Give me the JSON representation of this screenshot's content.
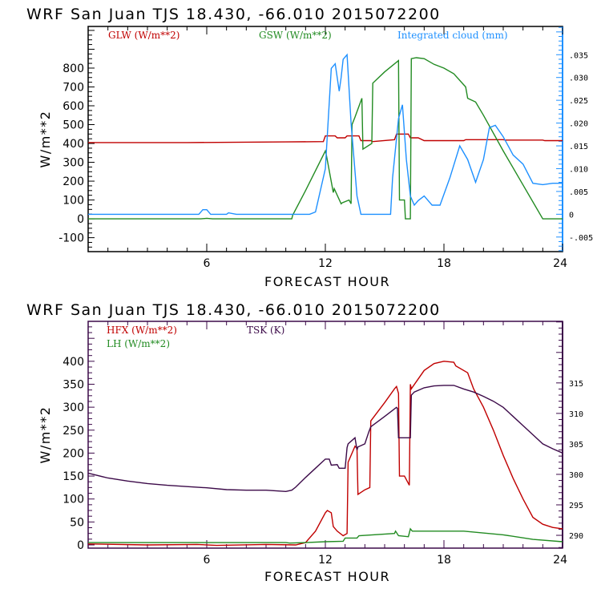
{
  "chart_data": [
    {
      "type": "line",
      "title": "WRF   San Juan TJS  18.430, -66.010  2015072200",
      "xlabel": "FORECAST HOUR",
      "ylabel": "W/m**2",
      "xlim": [
        0,
        24
      ],
      "ylim": [
        -174,
        1021
      ],
      "xticks": [
        6,
        12,
        18,
        24
      ],
      "xtick_labels": [
        "6",
        "12",
        "18",
        "24"
      ],
      "yticks": [
        -100,
        0,
        100,
        200,
        300,
        400,
        500,
        600,
        700,
        800
      ],
      "ytick_labels": [
        "-100",
        "0",
        "100",
        "200",
        "300",
        "400",
        "500",
        "600",
        "700",
        "800"
      ],
      "y2lim": [
        -0.0082,
        0.0412
      ],
      "y2ticks": [
        -0.005,
        0,
        0.005,
        0.01,
        0.015,
        0.02,
        0.025,
        0.03,
        0.035
      ],
      "y2tick_labels": [
        "-.005",
        "0",
        ".005",
        ".010",
        ".015",
        ".020",
        ".025",
        ".030",
        ".035"
      ],
      "grid": false,
      "legend_placement": "top",
      "series": [
        {
          "name": "GLW (W/m**2)",
          "axis": "left",
          "color": "#c00000",
          "x": [
            0,
            5,
            10,
            11.9,
            12.0,
            12.5,
            12.6,
            13.0,
            13.1,
            13.7,
            13.8,
            14.3,
            14.4,
            15.5,
            15.6,
            16.2,
            16.3,
            16.7,
            17.0,
            19.0,
            19.1,
            21.0,
            21.1,
            23.0,
            23.1,
            24
          ],
          "y": [
            405,
            405,
            408,
            410,
            440,
            440,
            430,
            430,
            440,
            440,
            415,
            415,
            410,
            420,
            450,
            450,
            430,
            430,
            415,
            415,
            420,
            420,
            418,
            418,
            415,
            415
          ]
        },
        {
          "name": "GSW (W/m**2)",
          "axis": "left",
          "color": "#228b22",
          "x": [
            0,
            5.7,
            6.0,
            6.3,
            10.3,
            10.35,
            11.0,
            12.0,
            12.05,
            12.4,
            12.45,
            12.8,
            12.85,
            13.2,
            13.3,
            13.35,
            13.5,
            13.85,
            13.9,
            14.35,
            14.4,
            15.0,
            15.7,
            15.75,
            16.0,
            16.05,
            16.3,
            16.35,
            16.6,
            17.0,
            17.5,
            18.0,
            18.5,
            19.1,
            19.2,
            19.6,
            20.0,
            21.0,
            22.0,
            23.0,
            24.0
          ],
          "y": [
            0,
            0,
            3,
            0,
            0,
            20,
            150,
            360,
            340,
            140,
            160,
            80,
            85,
            100,
            80,
            500,
            540,
            640,
            370,
            400,
            720,
            780,
            840,
            100,
            100,
            0,
            0,
            850,
            855,
            850,
            820,
            800,
            770,
            700,
            640,
            620,
            550,
            360,
            180,
            0,
            0
          ]
        },
        {
          "name": "Integrated cloud (mm)",
          "axis": "right",
          "color": "#1e90ff",
          "x": [
            0,
            5.6,
            5.8,
            6.0,
            6.2,
            7.0,
            7.1,
            7.5,
            10.0,
            11.2,
            11.5,
            12.0,
            12.3,
            12.5,
            12.7,
            12.8,
            12.9,
            13.1,
            13.3,
            13.6,
            13.8,
            15.3,
            15.4,
            15.7,
            15.9,
            16.1,
            16.3,
            16.5,
            16.7,
            17.0,
            17.4,
            17.8,
            18.3,
            18.8,
            19.2,
            19.6,
            20.0,
            20.3,
            20.6,
            21.0,
            21.5,
            22.0,
            22.5,
            23.0,
            23.5,
            24.0
          ],
          "y": [
            0,
            0,
            0.001,
            0.001,
            0,
            0,
            0.0003,
            0,
            0,
            0,
            0.0005,
            0.01,
            0.032,
            0.033,
            0.027,
            0.03,
            0.034,
            0.035,
            0.02,
            0.004,
            0,
            0,
            0.008,
            0.021,
            0.024,
            0.012,
            0.004,
            0.002,
            0.003,
            0.004,
            0.002,
            0.002,
            0.008,
            0.015,
            0.012,
            0.007,
            0.012,
            0.019,
            0.0195,
            0.017,
            0.013,
            0.011,
            0.0068,
            0.0065,
            0.0068,
            0.0068
          ]
        }
      ],
      "legend": [
        "GLW (W/m**2)",
        "GSW (W/m**2)",
        "Integrated cloud (mm)"
      ]
    },
    {
      "type": "line",
      "title": "WRF   San Juan TJS  18.430, -66.010  2015072200",
      "xlabel": "FORECAST HOUR",
      "ylabel": "W/m**2",
      "xlim": [
        0,
        24
      ],
      "ylim": [
        -7,
        487
      ],
      "xticks": [
        6,
        12,
        18,
        24
      ],
      "xtick_labels": [
        "6",
        "12",
        "18",
        "24"
      ],
      "yticks": [
        0,
        50,
        100,
        150,
        200,
        250,
        300,
        350,
        400
      ],
      "ytick_labels": [
        "0",
        "50",
        "100",
        "150",
        "200",
        "250",
        "300",
        "350",
        "400"
      ],
      "y2lim": [
        287.9,
        325.1
      ],
      "y2ticks": [
        290,
        295,
        300,
        305,
        310,
        315
      ],
      "y2tick_labels": [
        "290",
        "295",
        "300",
        "305",
        "310",
        "315"
      ],
      "grid": false,
      "legend_placement": "top-left",
      "series": [
        {
          "name": "HFX (W/m**2)",
          "axis": "left",
          "color": "#c00000",
          "x": [
            0,
            3,
            5.5,
            6.5,
            9,
            10.5,
            11.0,
            11.5,
            12.0,
            12.1,
            12.3,
            12.4,
            12.6,
            12.9,
            13.1,
            13.15,
            13.5,
            13.6,
            13.65,
            14.0,
            14.25,
            14.3,
            15.0,
            15.5,
            15.6,
            15.7,
            15.75,
            16.0,
            16.25,
            16.3,
            16.35,
            17.0,
            17.5,
            18.0,
            18.5,
            18.6,
            19.2,
            19.5,
            20.0,
            20.5,
            21.0,
            21.5,
            22.0,
            22.5,
            23.0,
            23.5,
            24
          ],
          "y": [
            2,
            0,
            1,
            -1,
            1,
            0,
            5,
            30,
            70,
            75,
            70,
            40,
            30,
            20,
            25,
            180,
            215,
            210,
            110,
            120,
            125,
            270,
            310,
            340,
            345,
            330,
            150,
            150,
            130,
            350,
            340,
            380,
            395,
            400,
            398,
            390,
            375,
            340,
            300,
            250,
            195,
            145,
            100,
            60,
            45,
            38,
            35
          ]
        },
        {
          "name": "LH (W/m**2)",
          "axis": "left",
          "color": "#228b22",
          "x": [
            0,
            10,
            10.2,
            11.0,
            12.0,
            12.9,
            13.0,
            13.6,
            13.7,
            15.5,
            15.55,
            15.7,
            16.2,
            16.3,
            16.4,
            17.0,
            19.0,
            21.0,
            22.5,
            24
          ],
          "y": [
            5,
            5,
            4,
            5,
            7,
            8,
            15,
            15,
            20,
            25,
            30,
            20,
            18,
            35,
            30,
            30,
            30,
            22,
            12,
            7
          ]
        },
        {
          "name": "TSK (K)",
          "axis": "right",
          "color": "#3c0a49",
          "x": [
            0,
            1,
            2,
            3,
            4,
            5,
            6,
            7,
            8,
            9,
            10.0,
            10.3,
            10.5,
            11.0,
            11.5,
            12.0,
            12.2,
            12.3,
            12.6,
            12.7,
            13.0,
            13.1,
            13.15,
            13.5,
            13.6,
            13.65,
            14.0,
            14.2,
            14.3,
            15.0,
            15.6,
            15.65,
            15.7,
            16.3,
            16.35,
            16.5,
            17.0,
            17.5,
            18.0,
            18.5,
            19.0,
            19.5,
            20.0,
            20.5,
            21.0,
            21.5,
            22.0,
            22.5,
            23.0,
            23.5,
            24
          ],
          "y": [
            300.2,
            299.4,
            298.9,
            298.5,
            298.2,
            298.0,
            297.8,
            297.5,
            297.4,
            297.4,
            297.2,
            297.4,
            297.9,
            299.5,
            301.0,
            302.5,
            302.5,
            301.5,
            301.6,
            301.0,
            301.0,
            304.4,
            305.0,
            306.0,
            304.0,
            304.5,
            305.0,
            307.0,
            307.8,
            309.5,
            311.0,
            310.8,
            306.0,
            306.0,
            313.0,
            313.5,
            314.2,
            314.5,
            314.6,
            314.6,
            314.0,
            313.5,
            312.8,
            312.0,
            311.0,
            309.5,
            308.0,
            306.5,
            305.0,
            304.2,
            303.5
          ]
        }
      ],
      "legend": [
        "HFX (W/m**2)",
        "LH (W/m**2)",
        "TSK (K)"
      ]
    }
  ]
}
